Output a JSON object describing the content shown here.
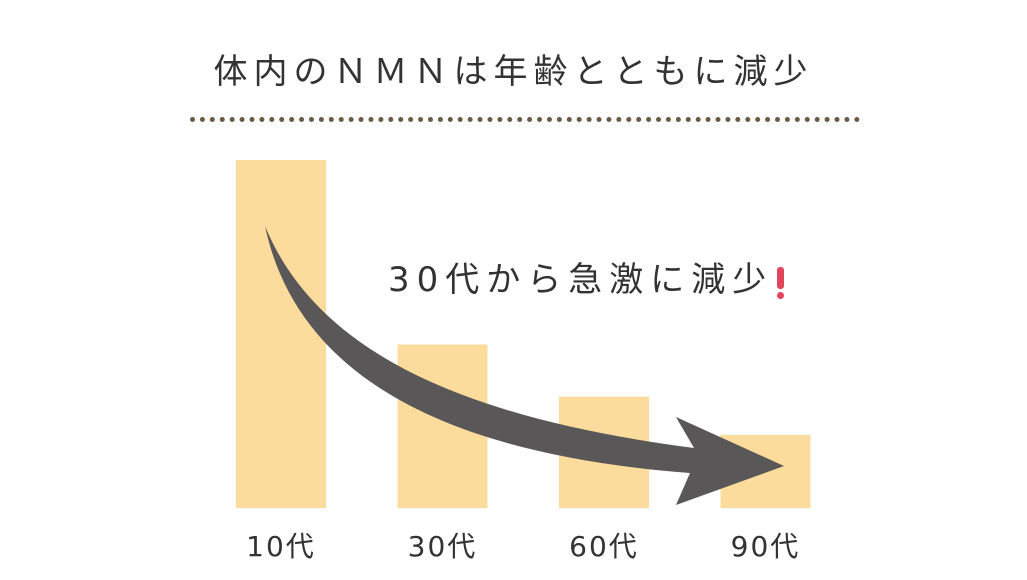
{
  "title": "体内のＮＭＮは年齢とともに減少",
  "annotation": {
    "text": "30代から急激に減少",
    "exclaim_icon": "exclamation-icon",
    "exclaim_color": "#e0455c"
  },
  "colors": {
    "bar": "#fcdc9c",
    "arrow": "#595757",
    "text": "#333333",
    "divider": "#6b5a45"
  },
  "chart_data": {
    "type": "bar",
    "title": "体内のＮＭＮは年齢とともに減少",
    "categories": [
      "10代",
      "30代",
      "60代",
      "90代"
    ],
    "values": [
      100,
      47,
      32,
      21
    ],
    "xlabel": "",
    "ylabel": "",
    "ylim": [
      0,
      100
    ],
    "grid": false,
    "legend": "none"
  }
}
